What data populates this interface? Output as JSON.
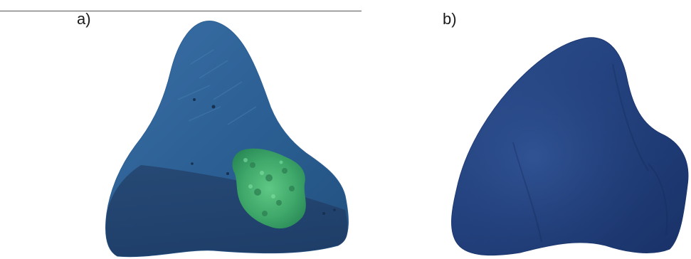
{
  "panels": [
    {
      "label": "a)"
    },
    {
      "label": "b)"
    }
  ],
  "colors": {
    "background": "#ffffff",
    "shell_blue": "#2a5a8c",
    "shell_blue_dark": "#1f3f73",
    "inner_region_green": "#3fa86a",
    "label_text": "#1a1a1a"
  }
}
